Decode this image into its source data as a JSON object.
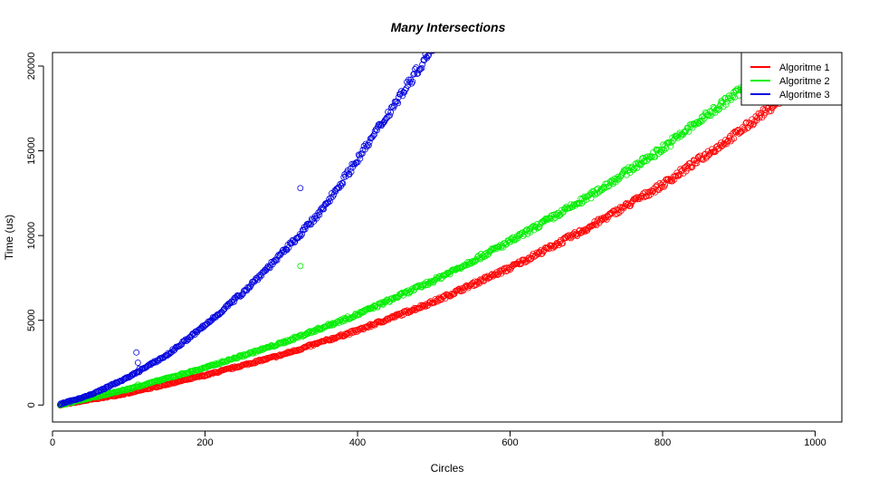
{
  "chart_data": {
    "type": "scatter",
    "title": "Many Intersections",
    "xlabel": "Circles",
    "ylabel": "Time (us)",
    "xlim": [
      0,
      1035
    ],
    "ylim": [
      -1000,
      20800
    ],
    "x_ticks": [
      0,
      200,
      400,
      600,
      800,
      1000
    ],
    "x_tick_labels": [
      "0",
      "200",
      "400",
      "600",
      "800",
      "1000"
    ],
    "y_ticks": [
      0,
      5000,
      10000,
      15000,
      20000
    ],
    "y_tick_labels": [
      "0",
      "5000",
      "10000",
      "15000",
      "20000"
    ],
    "grid": false,
    "legend_position": "top-right",
    "x_range": [
      10,
      990
    ],
    "series": [
      {
        "name": "Algoritme 1",
        "color": "#ff0000",
        "curve_x": [
          10,
          100,
          200,
          300,
          400,
          500,
          600,
          700,
          800,
          900,
          990
        ],
        "curve_y": [
          0,
          700,
          1750,
          2950,
          4400,
          6100,
          8100,
          10400,
          13000,
          16100,
          19300
        ],
        "outliers": []
      },
      {
        "name": "Algoritme 2",
        "color": "#00ee00",
        "curve_x": [
          10,
          100,
          200,
          300,
          400,
          500,
          600,
          700,
          800,
          900,
          990
        ],
        "curve_y": [
          0,
          950,
          2200,
          3650,
          5350,
          7350,
          9650,
          12200,
          15150,
          18500,
          21600
        ],
        "outliers": [
          [
            112,
            1200
          ],
          [
            325,
            8200
          ]
        ]
      },
      {
        "name": "Algoritme 3",
        "color": "#0000dd",
        "curve_x": [
          10,
          50,
          100,
          150,
          200,
          250,
          300,
          350,
          400,
          450,
          500
        ],
        "curve_y": [
          50,
          600,
          1650,
          2950,
          4700,
          6650,
          8900,
          11300,
          14500,
          17850,
          21200
        ],
        "outliers": [
          [
            110,
            3100
          ],
          [
            112,
            2500
          ],
          [
            114,
            2150
          ],
          [
            325,
            12800
          ]
        ]
      }
    ]
  }
}
